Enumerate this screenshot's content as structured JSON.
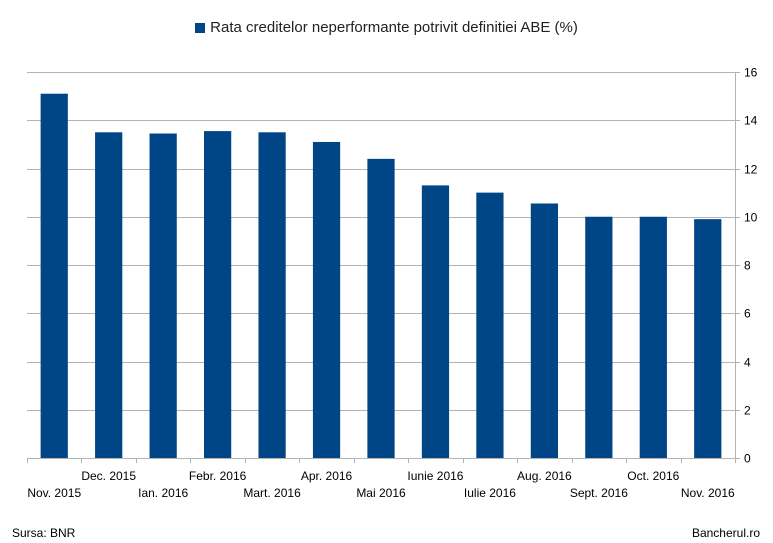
{
  "chart_data": {
    "type": "bar",
    "categories": [
      "Nov. 2015",
      "Dec. 2015",
      "Ian. 2016",
      "Febr. 2016",
      "Mart. 2016",
      "Apr. 2016",
      "Mai 2016",
      "Iunie 2016",
      "Iulie 2016",
      "Aug. 2016",
      "Sept. 2016",
      "Oct. 2016",
      "Nov. 2016"
    ],
    "series": [
      {
        "name": "Rata creditelor neperformante potrivit definitiei ABE (%)",
        "values": [
          15.1,
          13.5,
          13.45,
          13.55,
          13.5,
          13.1,
          12.4,
          11.3,
          11.0,
          10.55,
          10.0,
          10.0,
          9.9
        ],
        "color": "#004586"
      }
    ],
    "ylim": [
      0,
      16
    ],
    "yticks": [
      0,
      2,
      4,
      6,
      8,
      10,
      12,
      14,
      16
    ],
    "y_axis_side": "right",
    "grid": true,
    "legend_position": "top-center",
    "xlabel": "",
    "ylabel": ""
  },
  "footer": {
    "source": "Sursa: BNR",
    "site": "Bancherul.ro"
  }
}
